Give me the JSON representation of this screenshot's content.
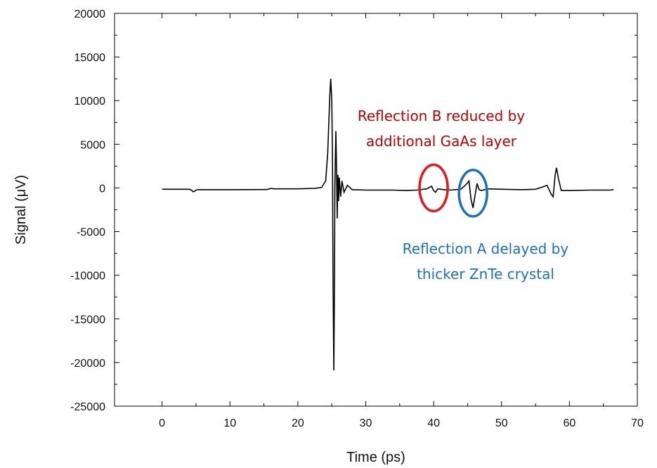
{
  "chart_data": {
    "type": "line",
    "xlabel": "Time (ps)",
    "ylabel": "Signal (μV)",
    "xlim": [
      -7,
      70
    ],
    "ylim": [
      -25000,
      20000
    ],
    "x_ticks": [
      "0",
      "10",
      "20",
      "30",
      "40",
      "50",
      "60",
      "70"
    ],
    "y_ticks": [
      "20000",
      "15000",
      "10000",
      "5000",
      "0",
      "-5000",
      "-10000",
      "-15000",
      "-20000",
      "-25000"
    ],
    "grid": false,
    "series": [
      {
        "color": "#000000",
        "points": [
          [
            0,
            -150
          ],
          [
            4.0,
            -150
          ],
          [
            4.3,
            -250
          ],
          [
            4.6,
            -450
          ],
          [
            4.9,
            -300
          ],
          [
            5.2,
            -200
          ],
          [
            10,
            -200
          ],
          [
            15.5,
            -180
          ],
          [
            16.0,
            -50
          ],
          [
            16.5,
            -100
          ],
          [
            20,
            -100
          ],
          [
            22.5,
            -50
          ],
          [
            23.5,
            50
          ],
          [
            24.1,
            800
          ],
          [
            24.4,
            4000
          ],
          [
            24.7,
            10500
          ],
          [
            24.85,
            12500
          ],
          [
            25.0,
            10000
          ],
          [
            25.1,
            3000
          ],
          [
            25.15,
            -5000
          ],
          [
            25.2,
            -12000
          ],
          [
            25.3,
            -20900
          ],
          [
            25.4,
            -10000
          ],
          [
            25.45,
            0
          ],
          [
            25.6,
            6500
          ],
          [
            25.7,
            2000
          ],
          [
            25.8,
            -3500
          ],
          [
            25.9,
            1500
          ],
          [
            26.0,
            -1500
          ],
          [
            26.1,
            1200
          ],
          [
            26.3,
            -1000
          ],
          [
            26.5,
            800
          ],
          [
            26.8,
            -500
          ],
          [
            27.3,
            300
          ],
          [
            28,
            -200
          ],
          [
            30,
            -250
          ],
          [
            34,
            -250
          ],
          [
            36,
            -300
          ],
          [
            37.5,
            -250
          ],
          [
            39,
            -100
          ],
          [
            39.7,
            200
          ],
          [
            40.0,
            -300
          ],
          [
            40.3,
            -500
          ],
          [
            40.6,
            -100
          ],
          [
            41.5,
            -200
          ],
          [
            42.5,
            -250
          ],
          [
            44.0,
            -150
          ],
          [
            44.8,
            400
          ],
          [
            45.2,
            800
          ],
          [
            45.5,
            -1300
          ],
          [
            45.8,
            -2300
          ],
          [
            46.1,
            -800
          ],
          [
            46.4,
            500
          ],
          [
            46.7,
            -200
          ],
          [
            47,
            -300
          ],
          [
            48,
            -100
          ],
          [
            50,
            -150
          ],
          [
            53,
            -200
          ],
          [
            55,
            -150
          ],
          [
            56.0,
            100
          ],
          [
            56.7,
            300
          ],
          [
            57.3,
            -700
          ],
          [
            57.6,
            -1000
          ],
          [
            57.9,
            1500
          ],
          [
            58.1,
            2300
          ],
          [
            58.4,
            1000
          ],
          [
            58.8,
            -300
          ],
          [
            60,
            -300
          ],
          [
            63,
            -250
          ],
          [
            66,
            -250
          ],
          [
            66.5,
            -200
          ]
        ]
      }
    ],
    "annotations": [
      {
        "id": "reflection_b",
        "lines": [
          "Reflection B reduced by",
          "additional GaAs layer"
        ],
        "color": "#c00000",
        "marker": "ellipse",
        "marker_color": "#e8141e",
        "center": [
          40.0,
          0
        ]
      },
      {
        "id": "reflection_a",
        "lines": [
          "Reflection A delayed by",
          "thicker ZnTe crystal"
        ],
        "color": "#1f6fc0",
        "marker": "ellipse",
        "marker_color": "#1f6fc0",
        "center": [
          45.8,
          -600
        ]
      }
    ]
  }
}
